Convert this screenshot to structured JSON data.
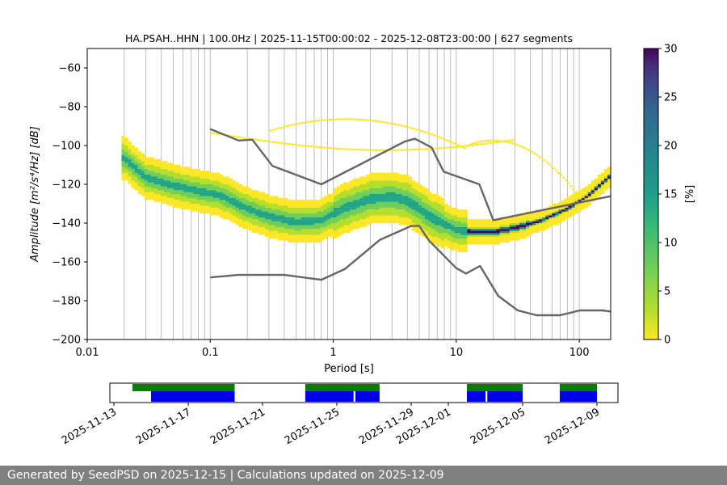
{
  "chart_data": {
    "type": "heatmap",
    "title": "HA.PSAH..HHN | 100.0Hz | 2025-11-15T00:00:02 - 2025-12-08T23:00:00 | 627 segments",
    "xlabel": "Period [s]",
    "ylabel": "Amplitude [m²/s⁴/Hz] [dB]",
    "x_scale": "log",
    "xlim": [
      0.01,
      180
    ],
    "ylim": [
      -200,
      -50
    ],
    "x_ticks": [
      0.01,
      0.1,
      1,
      10,
      100
    ],
    "x_tick_labels": [
      "0.01",
      "0.1",
      "1",
      "10",
      "100"
    ],
    "y_ticks": [
      -200,
      -180,
      -160,
      -140,
      -120,
      -100,
      -80,
      -60
    ],
    "y_tick_labels": [
      "−200",
      "−180",
      "−160",
      "−140",
      "−120",
      "−100",
      "−80",
      "−60"
    ],
    "grid": "vertical",
    "colorbar": {
      "label": "[%]",
      "range": [
        0,
        30
      ],
      "ticks": [
        0,
        5,
        10,
        15,
        20,
        25,
        30
      ],
      "tick_labels": [
        "0",
        "5",
        "10",
        "15",
        "20",
        "25",
        "30"
      ],
      "colormap": "viridis_r"
    },
    "psd_mode": {
      "period": [
        0.02,
        0.03,
        0.05,
        0.08,
        0.12,
        0.2,
        0.3,
        0.5,
        0.8,
        1.2,
        2,
        3,
        4,
        5,
        6,
        8,
        10,
        15,
        20,
        30,
        50,
        80,
        120,
        180
      ],
      "db": [
        -107,
        -117,
        -121,
        -124,
        -126,
        -133,
        -137,
        -140,
        -139,
        -133,
        -128,
        -127,
        -129,
        -133,
        -137,
        -141,
        -144,
        -145,
        -145,
        -143,
        -139,
        -133,
        -126,
        -116
      ]
    },
    "reference_curves": [
      {
        "period": [
          0.1,
          0.17,
          0.22,
          0.32,
          0.8,
          3.8,
          4.6,
          6.3,
          7.9,
          15.4,
          20,
          1000
        ],
        "db": [
          -91.5,
          -97.4,
          -97.0,
          -110.5,
          -120.0,
          -98.0,
          -96.5,
          -101.0,
          -113.5,
          -120.0,
          -138.5,
          -116.5
        ]
      },
      {
        "period": [
          0.1,
          0.17,
          0.4,
          0.8,
          1.24,
          2.4,
          4.3,
          5.0,
          6.0,
          10.0,
          12.0,
          15.6,
          21.9,
          31.6,
          45.0,
          70.0,
          101.0,
          154.0,
          180.0
        ],
        "db": [
          -168.0,
          -166.7,
          -166.7,
          -169.2,
          -163.7,
          -148.6,
          -141.5,
          -141.5,
          -149.0,
          -163.2,
          -166.0,
          -162.1,
          -177.5,
          -185.0,
          -187.5,
          -187.5,
          -185.0,
          -185.0,
          -185.6
        ]
      }
    ],
    "availability": {
      "x_tick_labels": [
        "2025-11-13",
        "2025-11-17",
        "2025-11-21",
        "2025-11-25",
        "2025-11-29",
        "2025-12-01",
        "2025-12-05",
        "2025-12-09"
      ],
      "x_tick_days": [
        0,
        4,
        8,
        12,
        16,
        18,
        22,
        26
      ],
      "green_ranges": [
        [
          1.0,
          6.5
        ],
        [
          10.3,
          14.3
        ],
        [
          19.0,
          22.0
        ],
        [
          24.0,
          26.0
        ]
      ],
      "blue_ranges": [
        [
          2.0,
          6.5
        ],
        [
          10.3,
          12.9
        ],
        [
          13.0,
          14.3
        ],
        [
          19.0,
          20.0
        ],
        [
          20.1,
          22.0
        ],
        [
          24.0,
          26.0
        ]
      ]
    }
  },
  "footer": {
    "text": "Generated by SeedPSD on 2025-12-15 | Calculations updated on 2025-12-09"
  }
}
